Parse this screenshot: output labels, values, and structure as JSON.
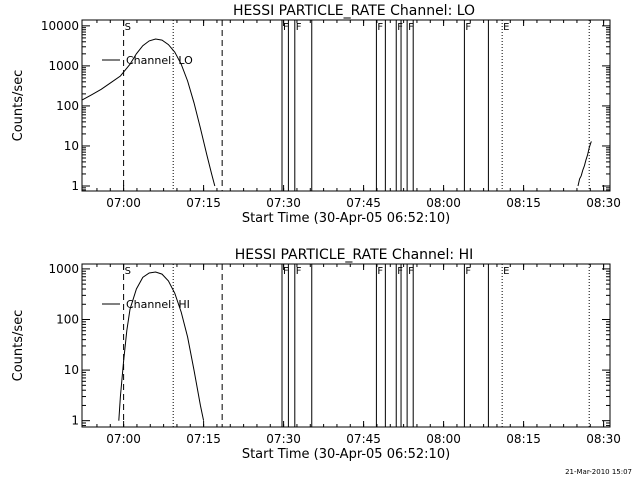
{
  "footer": {
    "timestamp": "21-Mar-2010 15:07"
  },
  "marker_lines": [
    {
      "t": 7.0,
      "style": "dashed",
      "label": "S"
    },
    {
      "t": 7.155,
      "style": "dotted",
      "label": ""
    },
    {
      "t": 7.308,
      "style": "dashed",
      "label": ""
    },
    {
      "t": 7.495,
      "style": "solid",
      "label": "F"
    },
    {
      "t": 7.515,
      "style": "solid",
      "label": ""
    },
    {
      "t": 7.535,
      "style": "solid",
      "label": "F"
    },
    {
      "t": 7.588,
      "style": "solid",
      "label": ""
    },
    {
      "t": 7.79,
      "style": "solid",
      "label": "F"
    },
    {
      "t": 7.818,
      "style": "solid",
      "label": ""
    },
    {
      "t": 7.852,
      "style": "solid",
      "label": "F"
    },
    {
      "t": 7.867,
      "style": "solid",
      "label": ""
    },
    {
      "t": 7.886,
      "style": "solid",
      "label": "F"
    },
    {
      "t": 7.905,
      "style": "solid",
      "label": ""
    },
    {
      "t": 8.065,
      "style": "solid",
      "label": "F"
    },
    {
      "t": 8.14,
      "style": "solid",
      "label": ""
    },
    {
      "t": 8.183,
      "style": "dotted",
      "label": "E"
    },
    {
      "t": 8.455,
      "style": "dotted",
      "label": ""
    }
  ],
  "chart_data": [
    {
      "type": "line",
      "title": "HESSI PARTICLE_RATE Channel: LO",
      "xlabel": "Start Time (30-Apr-05 06:52:10)",
      "ylabel": "Counts/sec",
      "log_y": true,
      "xlim": [
        6.87,
        8.52
      ],
      "ylim": [
        0.75,
        14000
      ],
      "xticks": [
        7.0,
        7.25,
        7.5,
        7.75,
        8.0,
        8.25,
        8.5
      ],
      "xtick_labels": [
        "07:00",
        "07:15",
        "07:30",
        "07:45",
        "08:00",
        "08:15",
        "08:30"
      ],
      "yticks": [
        1,
        10,
        100,
        1000,
        10000
      ],
      "ytick_labels": [
        "1",
        "10",
        "100",
        "1000",
        "10000"
      ],
      "legend": "top-left",
      "series": [
        {
          "name": "Channel: LO",
          "segments": [
            [
              [
                6.87,
                140
              ],
              [
                6.9,
                190
              ],
              [
                6.93,
                260
              ],
              [
                6.96,
                380
              ],
              [
                6.99,
                560
              ],
              [
                7.0,
                700
              ],
              [
                7.02,
                1100
              ],
              [
                7.04,
                2000
              ],
              [
                7.06,
                3200
              ],
              [
                7.08,
                4200
              ],
              [
                7.1,
                4700
              ],
              [
                7.12,
                4400
              ],
              [
                7.14,
                3400
              ],
              [
                7.16,
                2200
              ],
              [
                7.18,
                1100
              ],
              [
                7.2,
                420
              ],
              [
                7.22,
                120
              ],
              [
                7.24,
                28
              ],
              [
                7.26,
                6
              ],
              [
                7.275,
                2
              ],
              [
                7.285,
                1
              ]
            ],
            [
              [
                8.42,
                1
              ],
              [
                8.425,
                1.5
              ],
              [
                8.43,
                1.8
              ],
              [
                8.435,
                2.5
              ],
              [
                8.44,
                3.2
              ],
              [
                8.445,
                4.5
              ],
              [
                8.45,
                6
              ],
              [
                8.455,
                9
              ],
              [
                8.46,
                12
              ],
              [
                8.462,
                13
              ]
            ]
          ]
        }
      ]
    },
    {
      "type": "line",
      "title": "HESSI PARTICLE_RATE Channel: HI",
      "xlabel": "Start Time (30-Apr-05 06:52:10)",
      "ylabel": "Counts/sec",
      "log_y": true,
      "xlim": [
        6.87,
        8.52
      ],
      "ylim": [
        0.75,
        1250
      ],
      "xticks": [
        7.0,
        7.25,
        7.5,
        7.75,
        8.0,
        8.25,
        8.5
      ],
      "xtick_labels": [
        "07:00",
        "07:15",
        "07:30",
        "07:45",
        "08:00",
        "08:15",
        "08:30"
      ],
      "yticks": [
        1,
        10,
        100,
        1000
      ],
      "ytick_labels": [
        "1",
        "10",
        "100",
        "1000"
      ],
      "legend": "top-left",
      "series": [
        {
          "name": "Channel: HI",
          "segments": [
            [
              [
                6.985,
                1
              ],
              [
                6.99,
                3
              ],
              [
                7.0,
                15
              ],
              [
                7.01,
                60
              ],
              [
                7.02,
                160
              ],
              [
                7.04,
                400
              ],
              [
                7.06,
                680
              ],
              [
                7.08,
                830
              ],
              [
                7.1,
                870
              ],
              [
                7.12,
                790
              ],
              [
                7.14,
                580
              ],
              [
                7.16,
                330
              ],
              [
                7.18,
                140
              ],
              [
                7.2,
                45
              ],
              [
                7.22,
                10
              ],
              [
                7.24,
                2
              ],
              [
                7.25,
                1
              ]
            ]
          ]
        }
      ]
    }
  ]
}
